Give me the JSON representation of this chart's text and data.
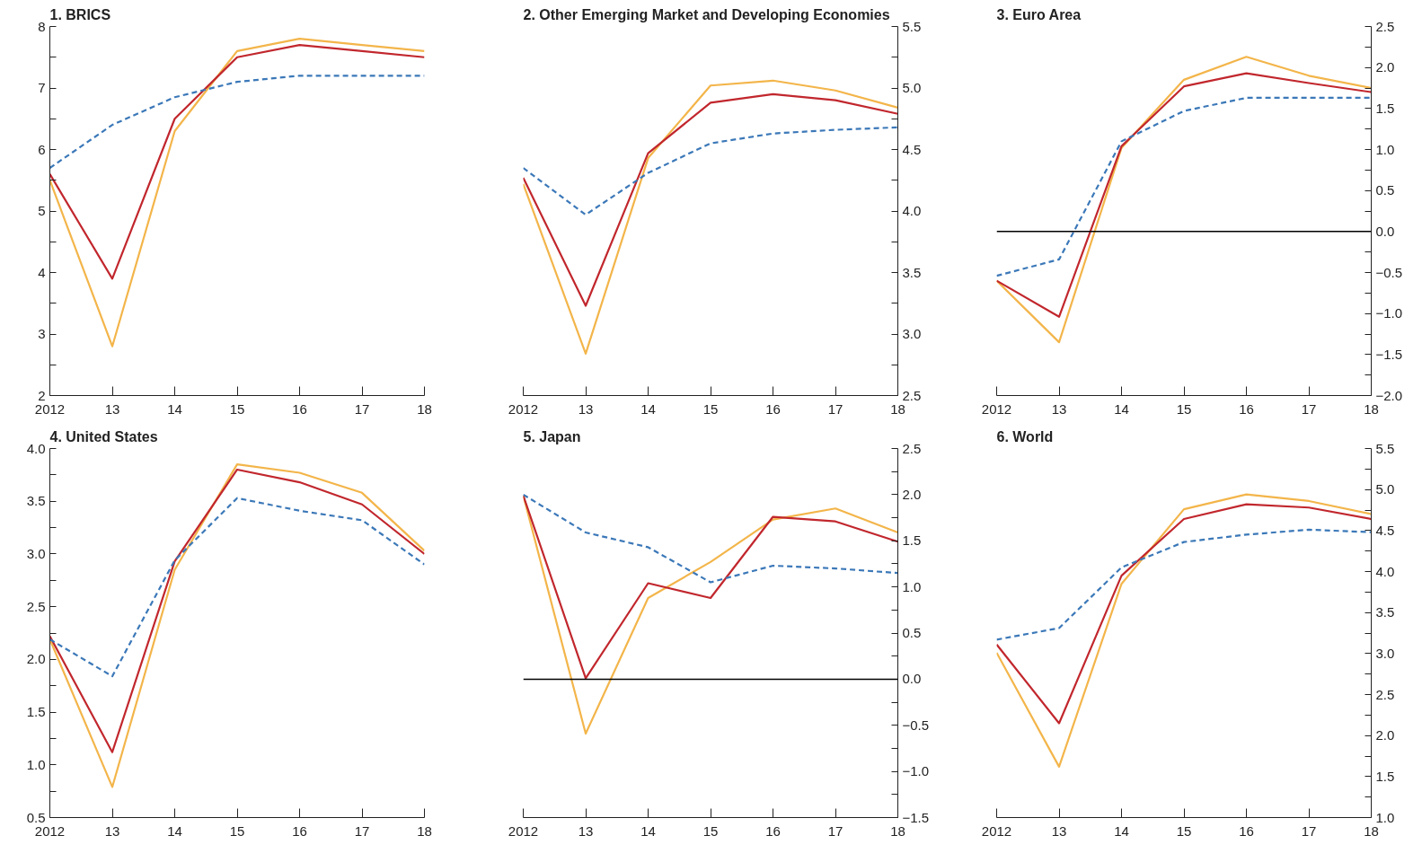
{
  "chart_data": [
    {
      "type": "line",
      "title": "1. BRICS",
      "x": [
        2012,
        2013,
        2014,
        2015,
        2016,
        2017,
        2018
      ],
      "xlim": [
        2012,
        2018
      ],
      "xticks": [
        2012,
        {
          "value": 2013,
          "label": "13"
        },
        {
          "value": 2014,
          "label": "14"
        },
        {
          "value": 2015,
          "label": "15"
        },
        {
          "value": 2016,
          "label": "16"
        },
        {
          "value": 2017,
          "label": "17"
        },
        {
          "value": 2018,
          "label": "18"
        }
      ],
      "ylim": [
        2,
        8
      ],
      "yticks": [
        2,
        {
          "value": 2.5,
          "label": null
        },
        3,
        {
          "value": 3.5,
          "label": null
        },
        4,
        {
          "value": 4.5,
          "label": null
        },
        5,
        {
          "value": 5.5,
          "label": null
        },
        6,
        {
          "value": 6.5,
          "label": null
        },
        7,
        {
          "value": 7.5,
          "label": null
        },
        8
      ],
      "grid": false,
      "marker": "none",
      "series": [
        {
          "color": "#f3b54a",
          "line_style": "solid",
          "values": [
            5.5,
            2.8,
            6.3,
            7.6,
            7.8,
            7.7,
            7.6
          ]
        },
        {
          "color": "#c1272d",
          "line_style": "solid",
          "values": [
            5.6,
            3.9,
            6.5,
            7.5,
            7.7,
            7.6,
            7.5
          ]
        },
        {
          "color": "#3b78b8",
          "line_style": "dashed",
          "values": [
            5.7,
            6.4,
            6.85,
            7.1,
            7.2,
            7.2,
            7.2
          ]
        }
      ]
    },
    {
      "type": "line",
      "title": "2. Other Emerging Market and Developing Economies",
      "x": [
        2012,
        2013,
        2014,
        2015,
        2016,
        2017,
        2018
      ],
      "xlim": [
        2012,
        2018
      ],
      "xticks": [
        2012,
        {
          "value": 2013,
          "label": "13"
        },
        {
          "value": 2014,
          "label": "14"
        },
        {
          "value": 2015,
          "label": "15"
        },
        {
          "value": 2016,
          "label": "16"
        },
        {
          "value": 2017,
          "label": "17"
        },
        {
          "value": 2018,
          "label": "18"
        }
      ],
      "y2lim": [
        2.5,
        5.5
      ],
      "y2ticks": [
        {
          "value": 2.5,
          "label": "2.5"
        },
        {
          "value": 2.75,
          "label": null
        },
        {
          "value": 3.0,
          "label": "3.0"
        },
        {
          "value": 3.25,
          "label": null
        },
        {
          "value": 3.5,
          "label": "3.5"
        },
        {
          "value": 3.75,
          "label": null
        },
        {
          "value": 4.0,
          "label": "4.0"
        },
        {
          "value": 4.25,
          "label": null
        },
        {
          "value": 4.5,
          "label": "4.5"
        },
        {
          "value": 4.75,
          "label": null
        },
        {
          "value": 5.0,
          "label": "5.0"
        },
        {
          "value": 5.25,
          "label": null
        },
        {
          "value": 5.5,
          "label": "5.5"
        }
      ],
      "grid": false,
      "marker": "none",
      "series": [
        {
          "axis": "y2",
          "color": "#f3b54a",
          "line_style": "solid",
          "values": [
            4.22,
            2.84,
            4.43,
            5.02,
            5.06,
            4.98,
            4.84
          ]
        },
        {
          "axis": "y2",
          "color": "#c1272d",
          "line_style": "solid",
          "values": [
            4.27,
            3.23,
            4.47,
            4.88,
            4.95,
            4.9,
            4.79
          ]
        },
        {
          "axis": "y2",
          "color": "#3b78b8",
          "line_style": "dashed",
          "values": [
            4.35,
            3.97,
            4.31,
            4.55,
            4.63,
            4.66,
            4.68
          ]
        }
      ]
    },
    {
      "type": "line",
      "title": "3. Euro Area",
      "x": [
        2012,
        2013,
        2014,
        2015,
        2016,
        2017,
        2018
      ],
      "xlim": [
        2012,
        2018
      ],
      "xticks": [
        2012,
        {
          "value": 2013,
          "label": "13"
        },
        {
          "value": 2014,
          "label": "14"
        },
        {
          "value": 2015,
          "label": "15"
        },
        {
          "value": 2016,
          "label": "16"
        },
        {
          "value": 2017,
          "label": "17"
        },
        {
          "value": 2018,
          "label": "18"
        }
      ],
      "y2lim": [
        -2.0,
        2.5
      ],
      "y2ticks": [
        {
          "value": -2.0,
          "label": "−2.0"
        },
        {
          "value": -1.75,
          "label": null
        },
        {
          "value": -1.5,
          "label": "−1.5"
        },
        {
          "value": -1.25,
          "label": null
        },
        {
          "value": -1.0,
          "label": "−1.0"
        },
        {
          "value": -0.75,
          "label": null
        },
        {
          "value": -0.5,
          "label": "−0.5"
        },
        {
          "value": -0.25,
          "label": null
        },
        {
          "value": 0.0,
          "label": "0.0"
        },
        {
          "value": 0.25,
          "label": null
        },
        {
          "value": 0.5,
          "label": "0.5"
        },
        {
          "value": 0.75,
          "label": null
        },
        {
          "value": 1.0,
          "label": "1.0"
        },
        {
          "value": 1.25,
          "label": null
        },
        {
          "value": 1.5,
          "label": "1.5"
        },
        {
          "value": 1.75,
          "label": null
        },
        {
          "value": 2.0,
          "label": "2.0"
        },
        {
          "value": 2.25,
          "label": null
        },
        {
          "value": 2.5,
          "label": "2.5"
        }
      ],
      "grid": false,
      "marker": "none",
      "ref_lines": [
        {
          "axis": "y2",
          "value": 0,
          "color": "#000000"
        }
      ],
      "series": [
        {
          "axis": "y2",
          "color": "#f3b54a",
          "line_style": "solid",
          "values": [
            -0.6,
            -1.35,
            1.02,
            1.85,
            2.13,
            1.9,
            1.75
          ]
        },
        {
          "axis": "y2",
          "color": "#c1272d",
          "line_style": "solid",
          "values": [
            -0.6,
            -1.04,
            1.04,
            1.77,
            1.93,
            1.81,
            1.7
          ]
        },
        {
          "axis": "y2",
          "color": "#3b78b8",
          "line_style": "dashed",
          "values": [
            -0.54,
            -0.34,
            1.1,
            1.47,
            1.63,
            1.63,
            1.63
          ]
        }
      ]
    },
    {
      "type": "line",
      "title": "4. United States",
      "x": [
        2012,
        2013,
        2014,
        2015,
        2016,
        2017,
        2018
      ],
      "xlim": [
        2012,
        2018
      ],
      "xticks": [
        2012,
        {
          "value": 2013,
          "label": "13"
        },
        {
          "value": 2014,
          "label": "14"
        },
        {
          "value": 2015,
          "label": "15"
        },
        {
          "value": 2016,
          "label": "16"
        },
        {
          "value": 2017,
          "label": "17"
        },
        {
          "value": 2018,
          "label": "18"
        }
      ],
      "ylim": [
        0.5,
        4.0
      ],
      "yticks": [
        {
          "value": 0.5,
          "label": "0.5"
        },
        {
          "value": 0.75,
          "label": null
        },
        {
          "value": 1.0,
          "label": "1.0"
        },
        {
          "value": 1.25,
          "label": null
        },
        {
          "value": 1.5,
          "label": "1.5"
        },
        {
          "value": 1.75,
          "label": null
        },
        {
          "value": 2.0,
          "label": "2.0"
        },
        {
          "value": 2.25,
          "label": null
        },
        {
          "value": 2.5,
          "label": "2.5"
        },
        {
          "value": 2.75,
          "label": null
        },
        {
          "value": 3.0,
          "label": "3.0"
        },
        {
          "value": 3.25,
          "label": null
        },
        {
          "value": 3.5,
          "label": "3.5"
        },
        {
          "value": 3.75,
          "label": null
        },
        {
          "value": 4.0,
          "label": "4.0"
        }
      ],
      "grid": false,
      "marker": "none",
      "series": [
        {
          "color": "#f3b54a",
          "line_style": "solid",
          "values": [
            2.19,
            0.79,
            2.85,
            3.85,
            3.77,
            3.58,
            3.03
          ]
        },
        {
          "color": "#c1272d",
          "line_style": "solid",
          "values": [
            2.22,
            1.12,
            2.93,
            3.8,
            3.68,
            3.47,
            3.0
          ]
        },
        {
          "color": "#3b78b8",
          "line_style": "dashed",
          "values": [
            2.19,
            1.84,
            2.94,
            3.53,
            3.41,
            3.32,
            2.9
          ]
        }
      ]
    },
    {
      "type": "line",
      "title": "5. Japan",
      "x": [
        2012,
        2013,
        2014,
        2015,
        2016,
        2017,
        2018
      ],
      "xlim": [
        2012,
        2018
      ],
      "xticks": [
        2012,
        {
          "value": 2013,
          "label": "13"
        },
        {
          "value": 2014,
          "label": "14"
        },
        {
          "value": 2015,
          "label": "15"
        },
        {
          "value": 2016,
          "label": "16"
        },
        {
          "value": 2017,
          "label": "17"
        },
        {
          "value": 2018,
          "label": "18"
        }
      ],
      "y2lim": [
        -1.5,
        2.5
      ],
      "y2ticks": [
        {
          "value": -1.5,
          "label": "−1.5"
        },
        {
          "value": -1.25,
          "label": null
        },
        {
          "value": -1.0,
          "label": "−1.0"
        },
        {
          "value": -0.75,
          "label": null
        },
        {
          "value": -0.5,
          "label": "−0.5"
        },
        {
          "value": -0.25,
          "label": null
        },
        {
          "value": 0.0,
          "label": "0.0"
        },
        {
          "value": 0.25,
          "label": null
        },
        {
          "value": 0.5,
          "label": "0.5"
        },
        {
          "value": 0.75,
          "label": null
        },
        {
          "value": 1.0,
          "label": "1.0"
        },
        {
          "value": 1.25,
          "label": null
        },
        {
          "value": 1.5,
          "label": "1.5"
        },
        {
          "value": 1.75,
          "label": null
        },
        {
          "value": 2.0,
          "label": "2.0"
        },
        {
          "value": 2.25,
          "label": null
        },
        {
          "value": 2.5,
          "label": "2.5"
        }
      ],
      "grid": false,
      "marker": "none",
      "ref_lines": [
        {
          "axis": "y2",
          "value": 0,
          "color": "#000000"
        }
      ],
      "series": [
        {
          "axis": "y2",
          "color": "#f3b54a",
          "line_style": "solid",
          "values": [
            1.99,
            -0.59,
            0.88,
            1.27,
            1.73,
            1.85,
            1.59
          ]
        },
        {
          "axis": "y2",
          "color": "#c1272d",
          "line_style": "solid",
          "values": [
            1.99,
            0.01,
            1.04,
            0.88,
            1.76,
            1.71,
            1.49
          ]
        },
        {
          "axis": "y2",
          "color": "#3b78b8",
          "line_style": "dashed",
          "values": [
            2.0,
            1.59,
            1.43,
            1.05,
            1.23,
            1.2,
            1.15
          ]
        }
      ]
    },
    {
      "type": "line",
      "title": "6. World",
      "x": [
        2012,
        2013,
        2014,
        2015,
        2016,
        2017,
        2018
      ],
      "xlim": [
        2012,
        2018
      ],
      "xticks": [
        2012,
        {
          "value": 2013,
          "label": "13"
        },
        {
          "value": 2014,
          "label": "14"
        },
        {
          "value": 2015,
          "label": "15"
        },
        {
          "value": 2016,
          "label": "16"
        },
        {
          "value": 2017,
          "label": "17"
        },
        {
          "value": 2018,
          "label": "18"
        }
      ],
      "y2lim": [
        1.0,
        5.5
      ],
      "y2ticks": [
        {
          "value": 1.0,
          "label": "1.0"
        },
        {
          "value": 1.25,
          "label": null
        },
        {
          "value": 1.5,
          "label": "1.5"
        },
        {
          "value": 1.75,
          "label": null
        },
        {
          "value": 2.0,
          "label": "2.0"
        },
        {
          "value": 2.25,
          "label": null
        },
        {
          "value": 2.5,
          "label": "2.5"
        },
        {
          "value": 2.75,
          "label": null
        },
        {
          "value": 3.0,
          "label": "3.0"
        },
        {
          "value": 3.25,
          "label": null
        },
        {
          "value": 3.5,
          "label": "3.5"
        },
        {
          "value": 3.75,
          "label": null
        },
        {
          "value": 4.0,
          "label": "4.0"
        },
        {
          "value": 4.25,
          "label": null
        },
        {
          "value": 4.5,
          "label": "4.5"
        },
        {
          "value": 4.75,
          "label": null
        },
        {
          "value": 5.0,
          "label": "5.0"
        },
        {
          "value": 5.25,
          "label": null
        },
        {
          "value": 5.5,
          "label": "5.5"
        }
      ],
      "grid": false,
      "marker": "none",
      "series": [
        {
          "axis": "y2",
          "color": "#f3b54a",
          "line_style": "solid",
          "values": [
            3.01,
            1.62,
            3.85,
            4.76,
            4.94,
            4.86,
            4.7
          ]
        },
        {
          "axis": "y2",
          "color": "#c1272d",
          "line_style": "solid",
          "values": [
            3.11,
            2.15,
            3.95,
            4.64,
            4.82,
            4.78,
            4.64
          ]
        },
        {
          "axis": "y2",
          "color": "#3b78b8",
          "line_style": "dashed",
          "values": [
            3.17,
            3.31,
            4.05,
            4.36,
            4.45,
            4.51,
            4.48
          ]
        }
      ]
    }
  ]
}
